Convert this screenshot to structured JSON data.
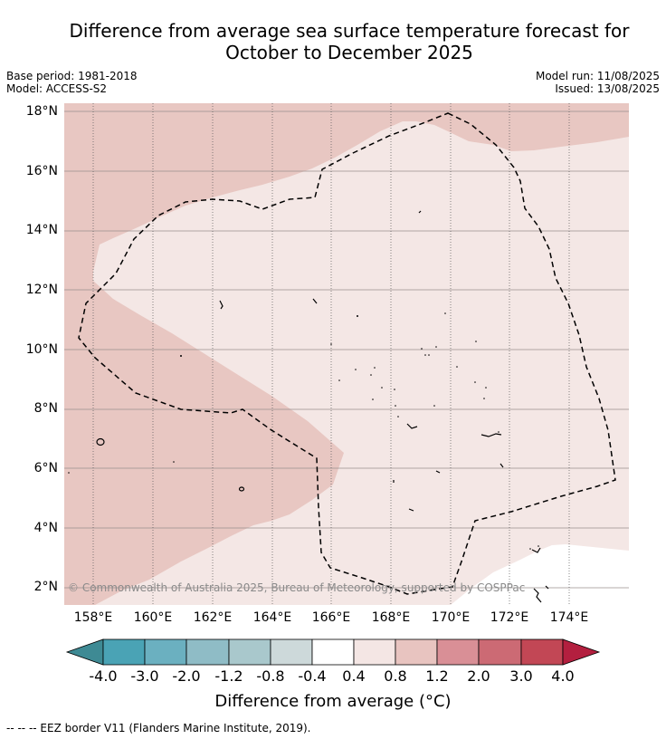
{
  "title_line1": "Difference from average sea surface temperature forecast for",
  "title_line2": "October to December 2025",
  "base_period": "Base period: 1981-2018",
  "model": "Model: ACCESS-S2",
  "model_run": "Model run: 11/08/2025",
  "issued": "Issued: 13/08/2025",
  "copyright": "© Commonwealth of Australia 2025, Bureau of Meteorology, supported by COSPPac",
  "footnote": "--  --  -- EEZ border V11 (Flanders Marine Institute, 2019).",
  "lat_labels": [
    "18°N",
    "16°N",
    "14°N",
    "12°N",
    "10°N",
    "8°N",
    "6°N",
    "4°N",
    "2°N"
  ],
  "lon_labels": [
    "158°E",
    "160°E",
    "162°E",
    "164°E",
    "166°E",
    "168°E",
    "170°E",
    "172°E",
    "174°E"
  ],
  "colorbar": {
    "label": "Difference from average (°C)",
    "ticks": [
      "-4.0",
      "-3.0",
      "-2.0",
      "-1.2",
      "-0.8",
      "-0.4",
      "0.4",
      "0.8",
      "1.2",
      "2.0",
      "3.0",
      "4.0"
    ],
    "colors": [
      "#3e8a94",
      "#4aa3b5",
      "#6bb0c0",
      "#8fbcc6",
      "#a9c8cc",
      "#cdd9da",
      "#ffffff",
      "#f4e6e4",
      "#e8c4c0",
      "#d98f96",
      "#cc6a74",
      "#c24755",
      "#b31f3f"
    ]
  },
  "map_colors": {
    "warm_0_8_1_2": "#e8c7c2",
    "warm_0_4_0_8": "#f4e7e5",
    "neutral": "#ffffff",
    "grid": "#9a8f8e"
  }
}
